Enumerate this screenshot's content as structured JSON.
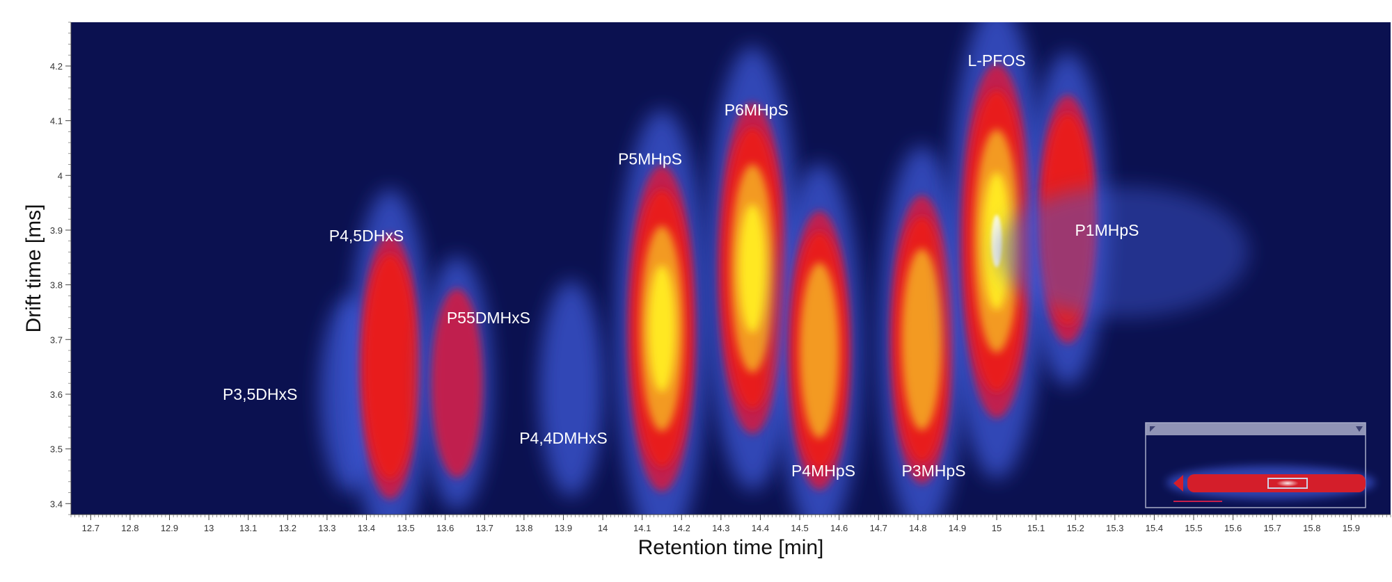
{
  "chart_data": {
    "type": "heatmap",
    "title": "",
    "xlabel": "Retention time [min]",
    "ylabel": "Drift time [ms]",
    "xlim": [
      12.65,
      16.0
    ],
    "ylim": [
      3.38,
      4.28
    ],
    "x_ticks": [
      "12.7",
      "12.8",
      "12.9",
      "13",
      "13.1",
      "13.2",
      "13.3",
      "13.4",
      "13.5",
      "13.6",
      "13.7",
      "13.8",
      "13.9",
      "14",
      "14.1",
      "14.2",
      "14.3",
      "14.4",
      "14.5",
      "14.6",
      "14.7",
      "14.8",
      "14.9",
      "15",
      "15.1",
      "15.2",
      "15.3",
      "15.4",
      "15.5",
      "15.6",
      "15.7",
      "15.8",
      "15.9"
    ],
    "y_ticks": [
      "3.4",
      "3.5",
      "3.6",
      "3.7",
      "3.8",
      "3.9",
      "4",
      "4.1",
      "4.2"
    ],
    "grid": false,
    "colormap": [
      "#0b1150",
      "#3f5ad8",
      "#c8204a",
      "#e81c1c",
      "#f39a20",
      "#ffe820",
      "#ffffe0"
    ],
    "peaks": [
      {
        "label": "P3,5DHxS",
        "rt": 13.36,
        "dt": 3.6,
        "intensity": 0.12,
        "label_rt": 13.13,
        "label_dt": 3.6
      },
      {
        "label": "P4,5DHxS",
        "rt": 13.46,
        "dt": 3.65,
        "intensity": 0.62,
        "label_rt": 13.4,
        "label_dt": 3.89
      },
      {
        "label": "P55DMHxS",
        "rt": 13.63,
        "dt": 3.62,
        "intensity": 0.3,
        "label_rt": 13.71,
        "label_dt": 3.74
      },
      {
        "label": "P4,4DMHxS",
        "rt": 13.92,
        "dt": 3.61,
        "intensity": 0.18,
        "label_rt": 13.9,
        "label_dt": 3.52
      },
      {
        "label": "P5MHpS",
        "rt": 14.15,
        "dt": 3.72,
        "intensity": 0.88,
        "label_rt": 14.12,
        "label_dt": 4.03
      },
      {
        "label": "P6MHpS",
        "rt": 14.38,
        "dt": 3.83,
        "intensity": 0.9,
        "label_rt": 14.39,
        "label_dt": 4.12
      },
      {
        "label": "P4MHpS",
        "rt": 14.55,
        "dt": 3.68,
        "intensity": 0.68,
        "label_rt": 14.56,
        "label_dt": 3.46
      },
      {
        "label": "P3MHpS",
        "rt": 14.81,
        "dt": 3.7,
        "intensity": 0.72,
        "label_rt": 14.84,
        "label_dt": 3.46
      },
      {
        "label": "L-PFOS",
        "rt": 15.0,
        "dt": 3.88,
        "intensity": 1.0,
        "label_rt": 15.0,
        "label_dt": 4.21
      },
      {
        "label": "P1MHpS",
        "rt": 15.18,
        "dt": 3.92,
        "intensity": 0.55,
        "label_rt": 15.28,
        "label_dt": 3.9
      }
    ]
  },
  "overview_panel": {
    "colors": {
      "background": "#0b1150",
      "band": "#d41e2a",
      "frame": "#a8acc8"
    }
  }
}
